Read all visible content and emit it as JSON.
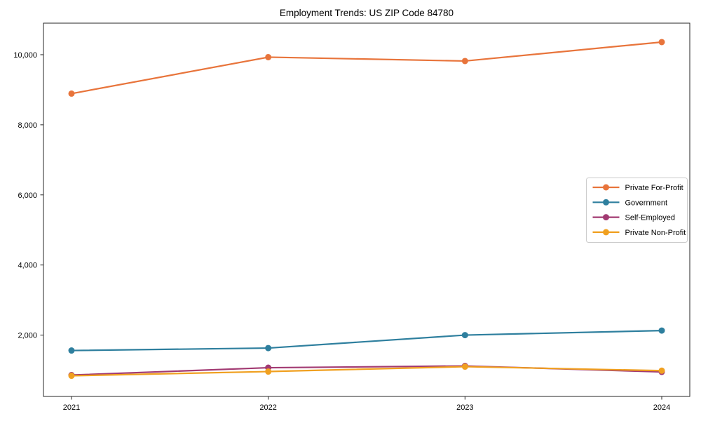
{
  "figure": {
    "title": "Employment Trends: US ZIP Code 84780"
  },
  "chart_data": {
    "type": "line",
    "title": "Employment Trends: US ZIP Code 84780",
    "xlabel": "",
    "ylabel": "",
    "x_categories": [
      "2021",
      "2022",
      "2023",
      "2024"
    ],
    "y_ticks": [
      {
        "value": 2000,
        "label": "2,000"
      },
      {
        "value": 4000,
        "label": "4,000"
      },
      {
        "value": 6000,
        "label": "6,000"
      },
      {
        "value": 8000,
        "label": "8,000"
      },
      {
        "value": 10000,
        "label": "10,000"
      }
    ],
    "ylim": [
      250,
      10900
    ],
    "grid": false,
    "legend_position": "center-right",
    "series": [
      {
        "name": "Private For-Profit",
        "color": "#E8743B",
        "values": [
          8890,
          9930,
          9820,
          10360
        ]
      },
      {
        "name": "Government",
        "color": "#2E7F9E",
        "values": [
          1560,
          1630,
          2000,
          2130
        ]
      },
      {
        "name": "Self-Employed",
        "color": "#A23A72",
        "values": [
          860,
          1070,
          1120,
          950
        ]
      },
      {
        "name": "Private Non-Profit",
        "color": "#F0A020",
        "values": [
          840,
          960,
          1100,
          985
        ]
      }
    ]
  }
}
